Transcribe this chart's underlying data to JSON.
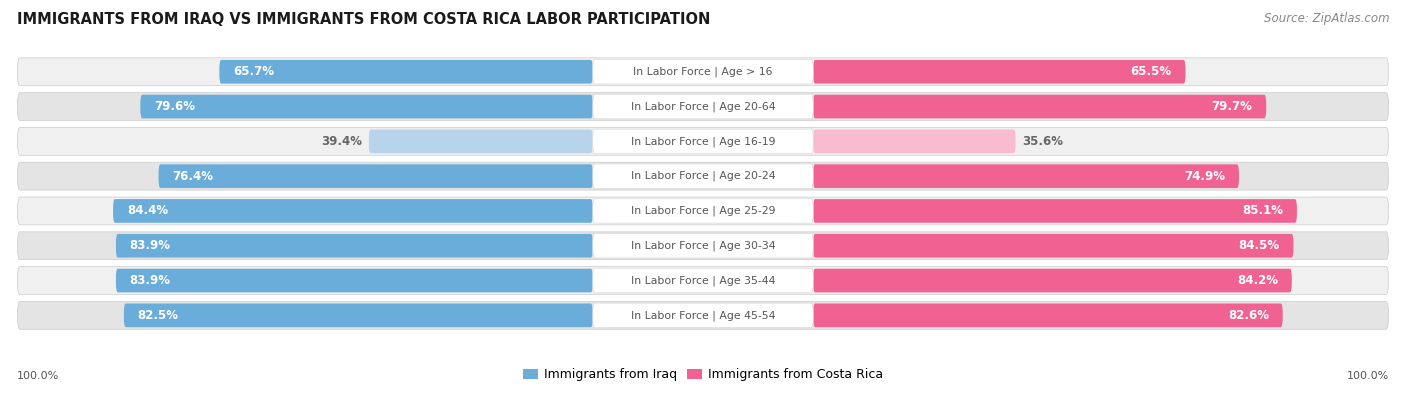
{
  "title": "IMMIGRANTS FROM IRAQ VS IMMIGRANTS FROM COSTA RICA LABOR PARTICIPATION",
  "source": "Source: ZipAtlas.com",
  "categories": [
    "In Labor Force | Age > 16",
    "In Labor Force | Age 20-64",
    "In Labor Force | Age 16-19",
    "In Labor Force | Age 20-24",
    "In Labor Force | Age 25-29",
    "In Labor Force | Age 30-34",
    "In Labor Force | Age 35-44",
    "In Labor Force | Age 45-54"
  ],
  "iraq_values": [
    65.7,
    79.6,
    39.4,
    76.4,
    84.4,
    83.9,
    83.9,
    82.5
  ],
  "costa_rica_values": [
    65.5,
    79.7,
    35.6,
    74.9,
    85.1,
    84.5,
    84.2,
    82.6
  ],
  "iraq_color": "#6aacda",
  "iraq_color_light": "#b8d4ea",
  "costa_rica_color": "#f06292",
  "costa_rica_color_light": "#f8bbd0",
  "row_bg_even": "#f0f0f0",
  "row_bg_odd": "#e4e4e4",
  "row_border_color": "#cccccc",
  "label_color": "#555555",
  "text_color_white": "#ffffff",
  "text_color_dark": "#666666",
  "legend_iraq": "Immigrants from Iraq",
  "legend_costa_rica": "Immigrants from Costa Rica",
  "max_value": 100.0,
  "title_fontsize": 10.5,
  "source_fontsize": 8.5,
  "bar_label_fontsize": 8.5,
  "category_fontsize": 7.8,
  "legend_fontsize": 9,
  "footer_fontsize": 8
}
